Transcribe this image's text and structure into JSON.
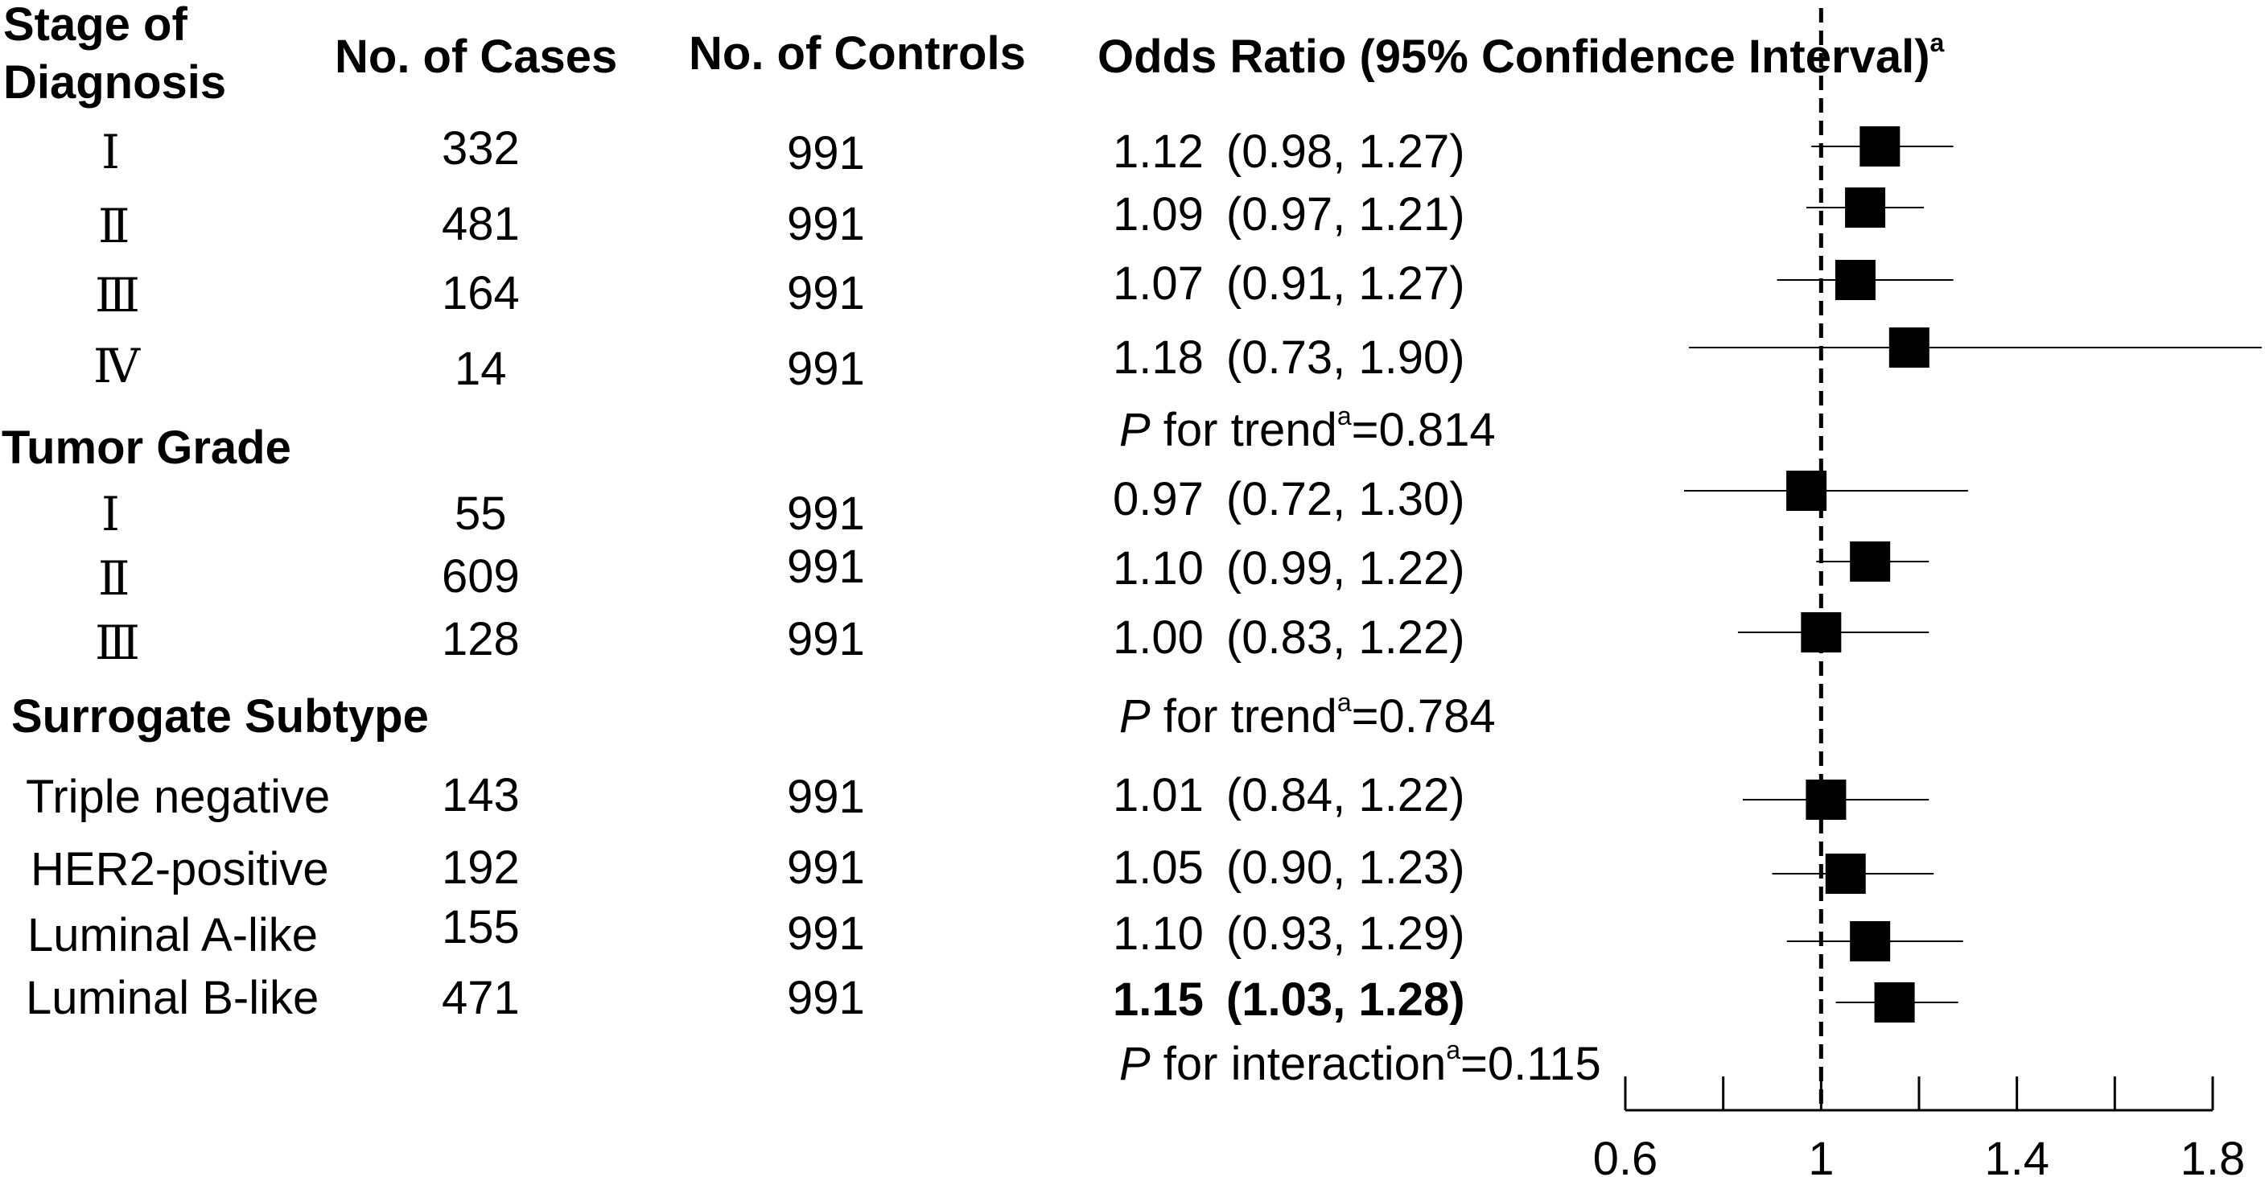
{
  "headers": {
    "stage_line1": "Stage of",
    "stage_line2": "Diagnosis",
    "cases": "No. of Cases",
    "controls": "No. of Controls",
    "or": "Odds Ratio (95% Confidence Interval)",
    "or_sup": "a"
  },
  "sections": {
    "tumor_grade": "Tumor Grade",
    "subtype": "Surrogate Subtype"
  },
  "rows": [
    {
      "label": "Ⅰ",
      "cases": "332",
      "controls": "991",
      "or": "1.12",
      "ci": "(0.98, 1.27)",
      "bold": false
    },
    {
      "label": "Ⅱ",
      "cases": "481",
      "controls": "991",
      "or": "1.09",
      "ci": "(0.97, 1.21)",
      "bold": false
    },
    {
      "label": "Ⅲ",
      "cases": "164",
      "controls": "991",
      "or": "1.07",
      "ci": "(0.91, 1.27)",
      "bold": false
    },
    {
      "label": "Ⅳ",
      "cases": "14",
      "controls": "991",
      "or": "1.18",
      "ci": "(0.73, 1.90)",
      "bold": false
    },
    {
      "label": "Ⅰ",
      "cases": "55",
      "controls": "991",
      "or": "0.97",
      "ci": "(0.72, 1.30)",
      "bold": false
    },
    {
      "label": "Ⅱ",
      "cases": "609",
      "controls": "991",
      "or": "1.10",
      "ci": "(0.99, 1.22)",
      "bold": false
    },
    {
      "label": "Ⅲ",
      "cases": "128",
      "controls": "991",
      "or": "1.00",
      "ci": "(0.83, 1.22)",
      "bold": false
    },
    {
      "label": "Triple negative",
      "cases": "143",
      "controls": "991",
      "or": "1.01",
      "ci": "(0.84, 1.22)",
      "bold": false
    },
    {
      "label": "HER2-positive",
      "cases": "192",
      "controls": "991",
      "or": "1.05",
      "ci": "(0.90, 1.23)",
      "bold": false
    },
    {
      "label": "Luminal A-like",
      "cases": "155",
      "controls": "991",
      "or": "1.10",
      "ci": "(0.93, 1.29)",
      "bold": false
    },
    {
      "label": "Luminal B-like",
      "cases": "471",
      "controls": "991",
      "or": "1.15",
      "ci": "(1.03, 1.28)",
      "bold": true
    }
  ],
  "pvalues": [
    {
      "p": "P",
      "text": " for trend",
      "sup": "a",
      "value": "=0.814"
    },
    {
      "p": "P",
      "text": " for trend",
      "sup": "a",
      "value": "=0.784"
    },
    {
      "p": "P",
      "text": " for interaction",
      "sup": "a",
      "value": "=0.115"
    }
  ],
  "chart_data": {
    "type": "scatter",
    "title": "",
    "xlabel": "",
    "ylabel": "",
    "xlim": [
      0.6,
      1.8
    ],
    "x_ticks": [
      0.6,
      1,
      1.4,
      1.8
    ],
    "x_tick_labels": [
      "0.6",
      "1",
      "1.4",
      "1.8"
    ],
    "reference_line": 1,
    "series": [
      {
        "categories": [
          "Stage Ⅰ",
          "Stage Ⅱ",
          "Stage Ⅲ",
          "Stage Ⅳ",
          "Grade Ⅰ",
          "Grade Ⅱ",
          "Grade Ⅲ",
          "Triple negative",
          "HER2-positive",
          "Luminal A-like",
          "Luminal B-like"
        ],
        "or": [
          1.12,
          1.09,
          1.07,
          1.18,
          0.97,
          1.1,
          1.0,
          1.01,
          1.05,
          1.1,
          1.15
        ],
        "lower": [
          0.98,
          0.97,
          0.91,
          0.73,
          0.72,
          0.99,
          0.83,
          0.84,
          0.9,
          0.93,
          1.03
        ],
        "upper": [
          1.27,
          1.21,
          1.27,
          1.9,
          1.3,
          1.22,
          1.22,
          1.22,
          1.23,
          1.29,
          1.28
        ]
      }
    ],
    "colors": {
      "marker": "#000000",
      "line": "#000000"
    }
  }
}
